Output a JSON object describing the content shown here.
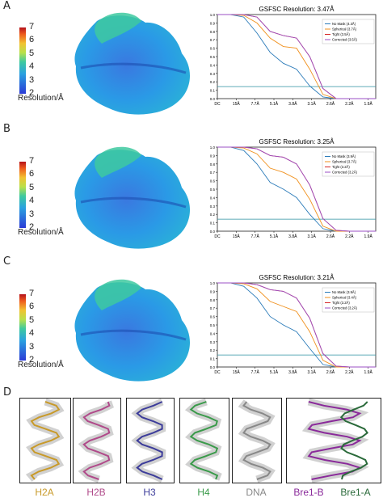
{
  "panels": [
    {
      "letter": "A",
      "cb_ticks": [
        "7",
        "6",
        "5",
        "4",
        "3",
        "2"
      ],
      "cb_label": "Resolution/Å",
      "fsc_title": "GSFSC Resolution: 3.47Å",
      "legend": [
        "No Mask (4.3Å)",
        "Spherical (3.7Å)",
        "Tight (3.5Å)",
        "Corrected (3.5Å)"
      ]
    },
    {
      "letter": "B",
      "cb_ticks": [
        "7",
        "6",
        "5",
        "4",
        "3",
        "2"
      ],
      "cb_label": "Resolution/Å",
      "fsc_title": "GSFSC Resolution: 3.25Å",
      "legend": [
        "No Mask (3.9Å)",
        "Spherical (3.7Å)",
        "Tight (3.2Å)",
        "Corrected (3.2Å)"
      ]
    },
    {
      "letter": "C",
      "cb_ticks": [
        "7",
        "6",
        "5",
        "4",
        "3",
        "2"
      ],
      "cb_label": "Resolution/Å",
      "fsc_title": "GSFSC Resolution: 3.21Å",
      "legend": [
        "No Mask (3.9Å)",
        "Spherical (3.4Å)",
        "Tight (3.2Å)",
        "Corrected (3.2Å)"
      ]
    }
  ],
  "fsc_axes": {
    "yticks": [
      "1.0",
      "0.9",
      "0.8",
      "0.7",
      "0.6",
      "0.5",
      "0.4",
      "0.3",
      "0.2",
      "0.1",
      "0.0"
    ],
    "xticks": [
      "DC",
      "15Å",
      "7.7Å",
      "5.1Å",
      "3.8Å",
      "3.1Å",
      "2.6Å",
      "2.2Å",
      "1.9Å"
    ]
  },
  "colors": {
    "nomask": "#2b7bb9",
    "spherical": "#f0901c",
    "tight": "#d62728",
    "corrected": "#9b4fc4",
    "threshold": "#2a8fa0"
  },
  "panel_d": {
    "letter": "D",
    "chains": [
      {
        "label": "H2A",
        "color": "#c89a2a"
      },
      {
        "label": "H2B",
        "color": "#b04a8a"
      },
      {
        "label": "H3",
        "color": "#3c3c9a"
      },
      {
        "label": "H4",
        "color": "#3a9a4a"
      },
      {
        "label": "DNA",
        "color": "#888888"
      },
      {
        "label": "Bre1-B",
        "color": "#8a2a9a"
      },
      {
        "label": "Bre1-A",
        "color": "#2a6a3a"
      }
    ]
  },
  "chart_data": [
    {
      "type": "line",
      "title": "GSFSC Resolution: 3.47Å",
      "ylim": [
        0,
        1
      ],
      "categories": [
        "DC",
        "15Å",
        "7.7Å",
        "5.1Å",
        "3.8Å",
        "3.1Å",
        "2.6Å",
        "2.2Å",
        "1.9Å"
      ],
      "x": [
        0,
        0.05,
        0.1,
        0.15,
        0.2,
        0.25,
        0.3,
        0.35,
        0.4,
        0.45,
        0.5,
        0.55,
        0.6
      ],
      "series": [
        {
          "name": "No Mask (4.3Å)",
          "values": [
            1,
            1,
            0.97,
            0.78,
            0.55,
            0.42,
            0.35,
            0.15,
            0.02,
            0,
            0,
            0,
            0
          ]
        },
        {
          "name": "Spherical (3.7Å)",
          "values": [
            1,
            1,
            0.99,
            0.9,
            0.72,
            0.62,
            0.6,
            0.35,
            0.05,
            0,
            0,
            0,
            0
          ]
        },
        {
          "name": "Tight (3.5Å)",
          "values": [
            1,
            1,
            1,
            0.97,
            0.8,
            0.75,
            0.72,
            0.5,
            0.12,
            0,
            0,
            0,
            0
          ]
        },
        {
          "name": "Corrected (3.5Å)",
          "values": [
            1,
            1,
            1,
            0.97,
            0.8,
            0.75,
            0.72,
            0.5,
            0.12,
            0,
            0,
            0,
            0
          ]
        }
      ],
      "threshold": 0.143
    },
    {
      "type": "line",
      "title": "GSFSC Resolution: 3.25Å",
      "ylim": [
        0,
        1
      ],
      "categories": [
        "DC",
        "15Å",
        "7.7Å",
        "5.1Å",
        "3.8Å",
        "3.1Å",
        "2.6Å",
        "2.2Å",
        "1.9Å"
      ],
      "x": [
        0,
        0.05,
        0.1,
        0.15,
        0.2,
        0.25,
        0.3,
        0.35,
        0.4,
        0.45,
        0.5,
        0.55,
        0.6
      ],
      "series": [
        {
          "name": "No Mask (3.9Å)",
          "values": [
            1,
            1,
            0.96,
            0.8,
            0.58,
            0.5,
            0.4,
            0.2,
            0.03,
            0,
            0,
            0,
            0
          ]
        },
        {
          "name": "Spherical (3.7Å)",
          "values": [
            1,
            1,
            0.99,
            0.92,
            0.75,
            0.7,
            0.62,
            0.38,
            0.06,
            0,
            0,
            0,
            0
          ]
        },
        {
          "name": "Tight (3.2Å)",
          "values": [
            1,
            1,
            1,
            0.98,
            0.9,
            0.88,
            0.8,
            0.55,
            0.15,
            0.01,
            0,
            0,
            0
          ]
        },
        {
          "name": "Corrected (3.2Å)",
          "values": [
            1,
            1,
            1,
            0.98,
            0.9,
            0.88,
            0.8,
            0.55,
            0.15,
            0.01,
            0,
            0,
            0
          ]
        }
      ],
      "threshold": 0.143
    },
    {
      "type": "line",
      "title": "GSFSC Resolution: 3.21Å",
      "ylim": [
        0,
        1
      ],
      "categories": [
        "DC",
        "15Å",
        "7.7Å",
        "5.1Å",
        "3.8Å",
        "3.1Å",
        "2.6Å",
        "2.2Å",
        "1.9Å"
      ],
      "x": [
        0,
        0.05,
        0.1,
        0.15,
        0.2,
        0.25,
        0.3,
        0.35,
        0.4,
        0.45,
        0.5,
        0.55,
        0.6
      ],
      "series": [
        {
          "name": "No Mask (3.9Å)",
          "values": [
            1,
            1,
            0.96,
            0.82,
            0.6,
            0.5,
            0.42,
            0.22,
            0.03,
            0,
            0,
            0,
            0
          ]
        },
        {
          "name": "Spherical (3.4Å)",
          "values": [
            1,
            1,
            0.99,
            0.93,
            0.78,
            0.72,
            0.66,
            0.42,
            0.08,
            0,
            0,
            0,
            0
          ]
        },
        {
          "name": "Tight (3.2Å)",
          "values": [
            1,
            1,
            1,
            0.98,
            0.92,
            0.9,
            0.82,
            0.58,
            0.16,
            0.01,
            0,
            0,
            0
          ]
        },
        {
          "name": "Corrected (3.2Å)",
          "values": [
            1,
            1,
            1,
            0.98,
            0.92,
            0.9,
            0.82,
            0.58,
            0.16,
            0.01,
            0,
            0,
            0
          ]
        }
      ],
      "threshold": 0.143
    }
  ]
}
